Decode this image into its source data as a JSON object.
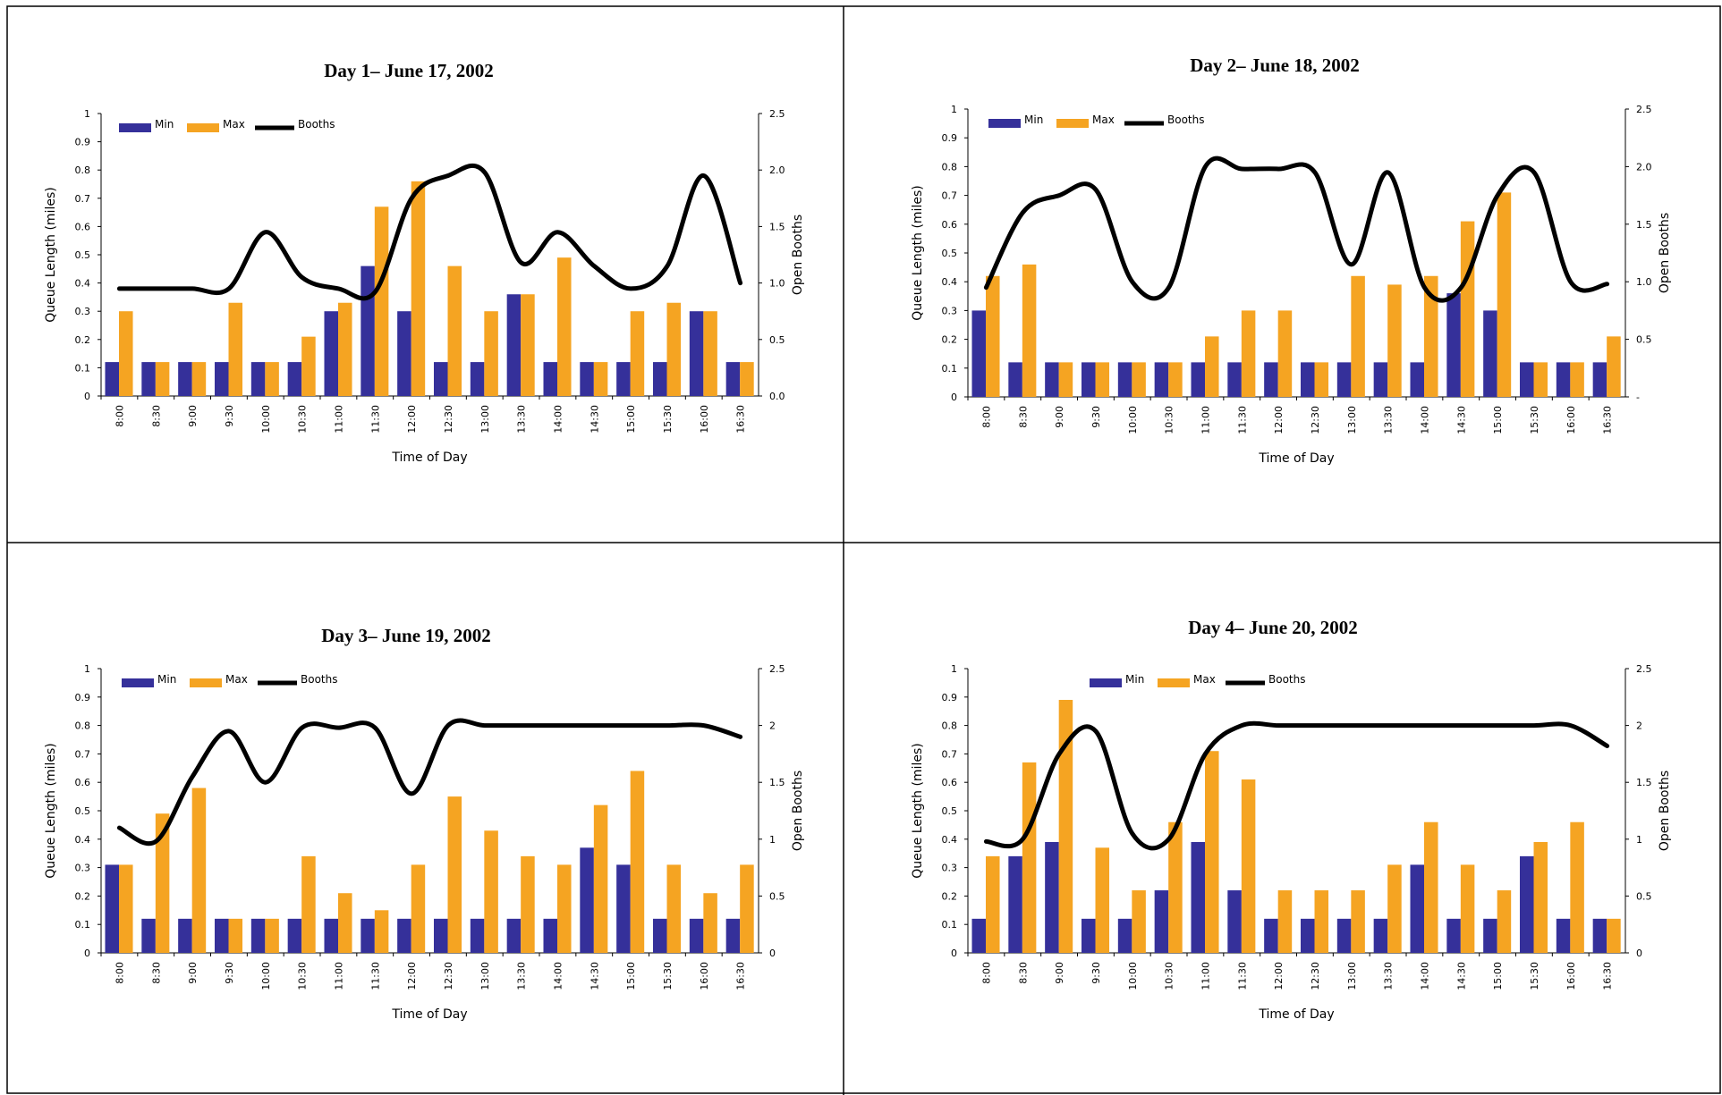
{
  "colors": {
    "min": "#35309a",
    "max": "#f5a422",
    "booths": "#000000",
    "axis": "#000000"
  },
  "chart_data": [
    {
      "type": "bar",
      "title": "Day 1– June 17, 2002",
      "xlabel": "Time of Day",
      "ylabel": "Queue Length (miles)",
      "y2label": "Open Booths",
      "ylim": [
        0,
        1
      ],
      "y2lim": [
        0,
        2.5
      ],
      "yticks": [
        "0",
        "0.1",
        "0.2",
        "0.3",
        "0.4",
        "0.5",
        "0.6",
        "0.7",
        "0.8",
        "0.9",
        "1"
      ],
      "y2ticks": [
        "0.0",
        "0.5",
        "1.0",
        "1.5",
        "2.0",
        "2.5"
      ],
      "legend": [
        "Min",
        "Max",
        "Booths"
      ],
      "legend_position": "top-left",
      "categories": [
        "8:00",
        "8:30",
        "9:00",
        "9:30",
        "10:00",
        "10:30",
        "11:00",
        "11:30",
        "12:00",
        "12:30",
        "13:00",
        "13:30",
        "14:00",
        "14:30",
        "15:00",
        "15:30",
        "16:00",
        "16:30"
      ],
      "series": [
        {
          "name": "Min",
          "axis": "left",
          "values": [
            0.12,
            0.12,
            0.12,
            0.12,
            0.12,
            0.12,
            0.3,
            0.46,
            0.3,
            0.12,
            0.12,
            0.36,
            0.12,
            0.12,
            0.12,
            0.12,
            0.3,
            0.12
          ]
        },
        {
          "name": "Max",
          "axis": "left",
          "values": [
            0.3,
            0.12,
            0.12,
            0.33,
            0.12,
            0.21,
            0.33,
            0.67,
            0.76,
            0.46,
            0.3,
            0.36,
            0.49,
            0.12,
            0.3,
            0.33,
            0.3,
            0.12
          ]
        },
        {
          "name": "Booths",
          "axis": "right",
          "type": "line",
          "values": [
            0.95,
            0.95,
            0.95,
            0.95,
            1.45,
            1.05,
            0.95,
            0.92,
            1.75,
            1.95,
            1.98,
            1.18,
            1.45,
            1.15,
            0.95,
            1.15,
            1.95,
            1.0
          ]
        }
      ]
    },
    {
      "type": "bar",
      "title": "Day 2– June 18, 2002",
      "xlabel": "Time of Day",
      "ylabel": "Queue Length (miles)",
      "y2label": "Open Booths",
      "ylim": [
        0,
        1
      ],
      "y2lim": [
        0,
        2.5
      ],
      "yticks": [
        "0",
        "0.1",
        "0.2",
        "0.3",
        "0.4",
        "0.5",
        "0.6",
        "0.7",
        "0.8",
        "0.9",
        "1"
      ],
      "y2ticks": [
        "-",
        "0.5",
        "1.0",
        "1.5",
        "2.0",
        "2.5"
      ],
      "legend": [
        "Min",
        "Max",
        "Booths"
      ],
      "legend_position": "top-left",
      "categories": [
        "8:00",
        "8:30",
        "9:00",
        "9:30",
        "10:00",
        "10:30",
        "11:00",
        "11:30",
        "12:00",
        "12:30",
        "13:00",
        "13:30",
        "14:00",
        "14:30",
        "15:00",
        "15:30",
        "16:00",
        "16:30"
      ],
      "series": [
        {
          "name": "Min",
          "axis": "left",
          "values": [
            0.3,
            0.12,
            0.12,
            0.12,
            0.12,
            0.12,
            0.12,
            0.12,
            0.12,
            0.12,
            0.12,
            0.12,
            0.12,
            0.36,
            0.3,
            0.12,
            0.12,
            0.12
          ]
        },
        {
          "name": "Max",
          "axis": "left",
          "values": [
            0.42,
            0.46,
            0.12,
            0.12,
            0.12,
            0.12,
            0.21,
            0.3,
            0.3,
            0.12,
            0.42,
            0.39,
            0.42,
            0.61,
            0.71,
            0.12,
            0.12,
            0.21
          ]
        },
        {
          "name": "Booths",
          "axis": "right",
          "type": "line",
          "values": [
            0.95,
            1.6,
            1.75,
            1.8,
            1.0,
            0.95,
            2.0,
            1.98,
            1.98,
            1.95,
            1.15,
            1.95,
            0.95,
            0.95,
            1.75,
            1.95,
            1.0,
            0.98
          ]
        }
      ]
    },
    {
      "type": "bar",
      "title": "Day 3– June 19, 2002",
      "xlabel": "Time of Day",
      "ylabel": "Queue Length (miles)",
      "y2label": "Open Booths",
      "ylim": [
        0,
        1
      ],
      "y2lim": [
        0,
        2.5
      ],
      "yticks": [
        "0",
        "0.1",
        "0.2",
        "0.3",
        "0.4",
        "0.5",
        "0.6",
        "0.7",
        "0.8",
        "0.9",
        "1"
      ],
      "y2ticks": [
        "0",
        "0.5",
        "1",
        "1.5",
        "2",
        "2.5"
      ],
      "legend": [
        "Min",
        "Max",
        "Booths"
      ],
      "legend_position": "top-left",
      "categories": [
        "8:00",
        "8:30",
        "9:00",
        "9:30",
        "10:00",
        "10:30",
        "11:00",
        "11:30",
        "12:00",
        "12:30",
        "13:00",
        "13:30",
        "14:00",
        "14:30",
        "15:00",
        "15:30",
        "16:00",
        "16:30"
      ],
      "series": [
        {
          "name": "Min",
          "axis": "left",
          "values": [
            0.31,
            0.12,
            0.12,
            0.12,
            0.12,
            0.12,
            0.12,
            0.12,
            0.12,
            0.12,
            0.12,
            0.12,
            0.12,
            0.37,
            0.31,
            0.12,
            0.12,
            0.12
          ]
        },
        {
          "name": "Max",
          "axis": "left",
          "values": [
            0.31,
            0.49,
            0.58,
            0.12,
            0.12,
            0.34,
            0.21,
            0.15,
            0.31,
            0.55,
            0.43,
            0.34,
            0.31,
            0.52,
            0.64,
            0.31,
            0.21,
            0.31
          ]
        },
        {
          "name": "Booths",
          "axis": "right",
          "type": "line",
          "values": [
            1.1,
            0.98,
            1.55,
            1.95,
            1.5,
            1.98,
            1.98,
            1.98,
            1.4,
            2.0,
            2.0,
            2.0,
            2.0,
            2.0,
            2.0,
            2.0,
            2.0,
            1.9
          ]
        }
      ]
    },
    {
      "type": "bar",
      "title": "Day 4– June 20, 2002",
      "xlabel": "Time of Day",
      "ylabel": "Queue Length (miles)",
      "y2label": "Open Booths",
      "ylim": [
        0,
        1
      ],
      "y2lim": [
        0,
        2.5
      ],
      "yticks": [
        "0",
        "0.1",
        "0.2",
        "0.3",
        "0.4",
        "0.5",
        "0.6",
        "0.7",
        "0.8",
        "0.9",
        "1"
      ],
      "y2ticks": [
        "0",
        "0.5",
        "1",
        "1.5",
        "2",
        "2.5"
      ],
      "legend": [
        "Min",
        "Max",
        "Booths"
      ],
      "legend_position": "top-center",
      "categories": [
        "8:00",
        "8:30",
        "9:00",
        "9:30",
        "10:00",
        "10:30",
        "11:00",
        "11:30",
        "12:00",
        "12:30",
        "13:00",
        "13:30",
        "14:00",
        "14:30",
        "15:00",
        "15:30",
        "16:00",
        "16:30"
      ],
      "series": [
        {
          "name": "Min",
          "axis": "left",
          "values": [
            0.12,
            0.34,
            0.39,
            0.12,
            0.12,
            0.22,
            0.39,
            0.22,
            0.12,
            0.12,
            0.12,
            0.12,
            0.31,
            0.12,
            0.12,
            0.34,
            0.12,
            0.12
          ]
        },
        {
          "name": "Max",
          "axis": "left",
          "values": [
            0.34,
            0.67,
            0.89,
            0.37,
            0.22,
            0.46,
            0.71,
            0.61,
            0.22,
            0.22,
            0.22,
            0.31,
            0.46,
            0.31,
            0.22,
            0.39,
            0.46,
            0.12
          ]
        },
        {
          "name": "Booths",
          "axis": "right",
          "type": "line",
          "values": [
            0.98,
            1.0,
            1.75,
            1.95,
            1.05,
            1.0,
            1.75,
            2.0,
            2.0,
            2.0,
            2.0,
            2.0,
            2.0,
            2.0,
            2.0,
            2.0,
            2.0,
            1.82
          ]
        }
      ]
    }
  ]
}
